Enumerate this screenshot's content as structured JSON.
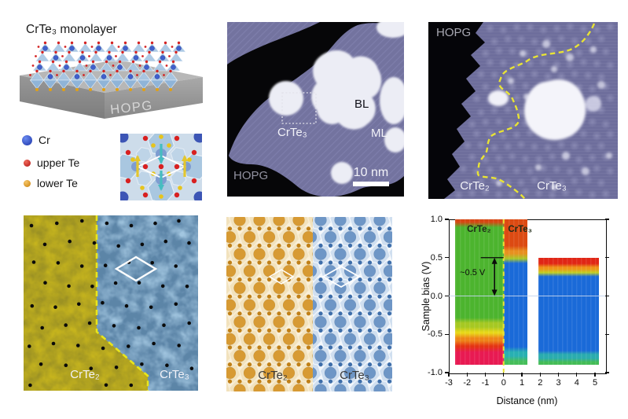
{
  "figure": {
    "panel_a": {
      "title": "CrTe₃ monolayer",
      "substrate": "HOPG",
      "legend": [
        {
          "label": "Cr",
          "color": "#2744c8"
        },
        {
          "label": "upper Te",
          "color": "#d42222"
        },
        {
          "label": "lower Te",
          "color": "#e2960f"
        }
      ]
    },
    "panel_b": {
      "label_bl": "BL",
      "label_ml": "ML",
      "label_crte3": "CrTe₃",
      "label_hopg": "HOPG",
      "scale_bar": "10 nm"
    },
    "panel_c": {
      "label_hopg": "HOPG",
      "label_crte2": "CrTe₂",
      "label_crte3": "CrTe₃"
    },
    "panel_d": {
      "label_crte2": "CrTe₂",
      "label_crte3": "CrTe₃"
    },
    "panel_e": {
      "label_crte2": "CrTe₂",
      "label_crte3": "CrTe₃"
    }
  },
  "colors": {
    "stm_terrace_purple": "#73739f",
    "stm_bilayer_white": "#ecedf5",
    "boundary_dash_yellow": "#e8e232",
    "crte2_domain_yellow": "#c6b41e",
    "crte3_domain_blue": "#a2c6e0",
    "model_orange": "#d79a33",
    "model_blue": "#6e96c6"
  },
  "chart_data": {
    "type": "heatmap",
    "title": "",
    "xlabel": "Distance (nm)",
    "ylabel": "Sample bias (V)",
    "xlim": [
      -3,
      5
    ],
    "ylim": [
      -1.0,
      1.0
    ],
    "xtick_values": [
      -3,
      -2,
      -1,
      0,
      1,
      2,
      3,
      4,
      5
    ],
    "xticks": [
      "-3",
      "-2",
      "-1",
      "0",
      "1",
      "2",
      "3",
      "4",
      "5"
    ],
    "ytick_values": [
      1.0,
      0.5,
      0.0,
      -0.5,
      -1.0
    ],
    "yticks": [
      "1.0",
      "0.5",
      "0.0",
      "-0.5",
      "-1.0"
    ],
    "grid": false,
    "legend_position": "none",
    "boundary_line_x": 0,
    "zero_bias_line_v": 0,
    "region_labels": [
      {
        "text": "CrTe₂",
        "x": -1.35,
        "v": 0.88
      },
      {
        "text": "CrTe₃",
        "x": 0.9,
        "v": 0.88
      }
    ],
    "annotation": {
      "text": "~0.5 V",
      "text_x": -1.7,
      "text_v": 0.3,
      "arrow_x": -0.5,
      "arrow_v_from": 0.0,
      "arrow_v_to": 0.5,
      "marker_v": 0.5,
      "marker_x_from": -1.25,
      "marker_x_to": 0.0
    },
    "blocks": [
      {
        "name": "CrTe₂ side spectra",
        "x_from": -2.65,
        "x_to": 0.0,
        "v_top": 1.0,
        "v_bottom": -0.9,
        "bands": [
          {
            "v_to": 0.93,
            "color": "#d64612"
          },
          {
            "v_to": -0.32,
            "color": "#4cb42e"
          },
          {
            "v_to": -0.44,
            "color": "#a6c822"
          },
          {
            "v_to": -0.52,
            "color": "#e8d818"
          },
          {
            "v_to": -0.62,
            "color": "#ee8418"
          },
          {
            "v_to": -0.7,
            "color": "#e43214"
          },
          {
            "v_to": -0.9,
            "color": "#e81a52"
          }
        ]
      },
      {
        "name": "CrTe₃ spectra at boundary",
        "x_from": 0.0,
        "x_to": 1.3,
        "v_top": 1.0,
        "v_bottom": -0.9,
        "bands": [
          {
            "v_to": 0.62,
            "color": "#dc4a12"
          },
          {
            "v_to": 0.52,
            "color": "#e89020"
          },
          {
            "v_to": 0.46,
            "color": "#a8c828"
          },
          {
            "v_to": -0.7,
            "color": "#1a6ad8"
          },
          {
            "v_to": -0.82,
            "color": "#28b0b2"
          },
          {
            "v_to": -0.9,
            "color": "#46be5a"
          }
        ]
      },
      {
        "name": "CrTe₃ spectra",
        "x_from": 1.9,
        "x_to": 5.2,
        "v_top": 0.5,
        "v_bottom": -0.9,
        "bands": [
          {
            "v_to": 0.4,
            "color": "#e02616"
          },
          {
            "v_to": 0.33,
            "color": "#ee9418"
          },
          {
            "v_to": 0.28,
            "color": "#c2d022"
          },
          {
            "v_to": -0.74,
            "color": "#1a6ad8"
          },
          {
            "v_to": -0.84,
            "color": "#2aacae"
          },
          {
            "v_to": -0.9,
            "color": "#44bc56"
          }
        ]
      }
    ]
  }
}
